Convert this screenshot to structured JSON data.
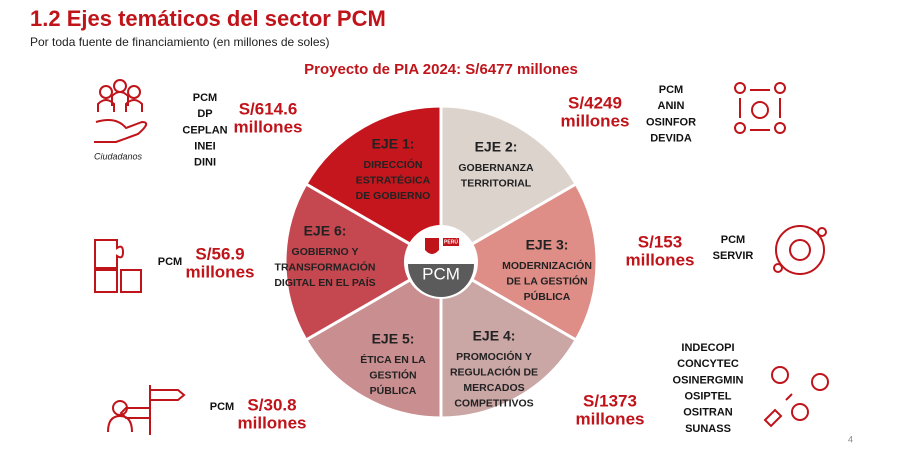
{
  "header": {
    "title": "1.2 Ejes temáticos del sector PCM",
    "subtitle": "Por toda fuente de financiamiento (en millones de soles)"
  },
  "diagram": {
    "title": "Proyecto de PIA 2024: S/6477 millones",
    "center": "PCM",
    "badge": "PERÚ",
    "sectors": [
      {
        "label": "EJE 1:",
        "lines": [
          "DIRECCIÓN",
          "ESTRATÉGICA",
          "DE GOBIERNO"
        ],
        "color": "#c5161d",
        "amount": "S/614.6",
        "unit": "millones",
        "entities": [
          "PCM",
          "DP",
          "CEPLAN",
          "INEI",
          "DINI"
        ],
        "caption": "Ciudadanos"
      },
      {
        "label": "EJE 2:",
        "lines": [
          "GOBERNANZA",
          "TERRITORIAL"
        ],
        "color": "#dcd3cd",
        "amount": "S/4249",
        "unit": "millones",
        "entities": [
          "PCM",
          "ANIN",
          "OSINFOR",
          "DEVIDA"
        ]
      },
      {
        "label": "EJE 3:",
        "lines": [
          "MODERNIZACIÓN",
          "DE LA GESTIÓN",
          "PÚBLICA"
        ],
        "color": "#de8e87",
        "amount": "S/153",
        "unit": "millones",
        "entities": [
          "PCM",
          "SERVIR"
        ]
      },
      {
        "label": "EJE 4:",
        "lines": [
          "PROMOCIÓN Y",
          "REGULACIÓN DE",
          "MERCADOS",
          "COMPETITIVOS"
        ],
        "color": "#caa6a5",
        "amount": "S/1373",
        "unit": "millones",
        "entities": [
          "INDECOPI",
          "CONCYTEC",
          "OSINERGMIN",
          "OSIPTEL",
          "OSITRAN",
          "SUNASS"
        ]
      },
      {
        "label": "EJE 5:",
        "lines": [
          "ÉTICA EN LA",
          "GESTIÓN",
          "PÚBLICA"
        ],
        "color": "#c98e90",
        "amount": "S/30.8",
        "unit": "millones",
        "entities": [
          "PCM"
        ]
      },
      {
        "label": "EJE 6:",
        "lines": [
          "GOBIERNO Y",
          "TRANSFORMACIÓN",
          "DIGITAL EN EL PAÍS"
        ],
        "color": "#c5474f",
        "amount": "S/56.9",
        "unit": "millones",
        "entities": [
          "PCM"
        ]
      }
    ]
  },
  "footer": {
    "page": "4"
  }
}
